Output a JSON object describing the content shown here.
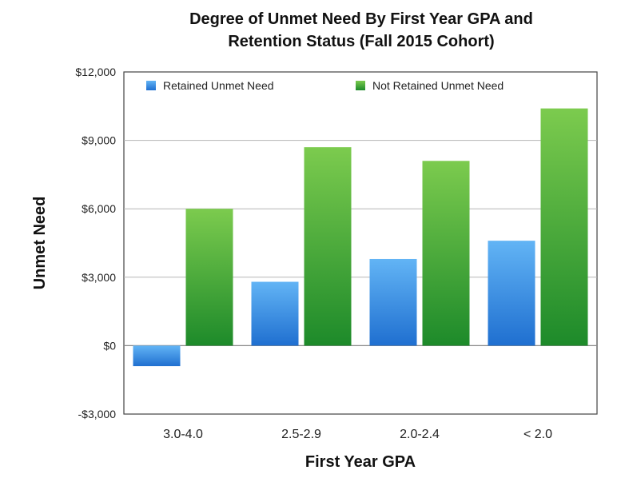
{
  "chart_data": {
    "type": "bar",
    "title_lines": [
      "Degree of Unmet Need By First Year GPA and",
      "Retention Status (Fall 2015 Cohort)"
    ],
    "xlabel": "First Year GPA",
    "ylabel": "Unmet Need",
    "categories": [
      "3.0-4.0",
      "2.5-2.9",
      "2.0-2.4",
      "< 2.0"
    ],
    "series": [
      {
        "name": "Retained Unmet Need",
        "values": [
          -900,
          2800,
          3800,
          4600
        ],
        "color": "#3a8ee6"
      },
      {
        "name": "Not Retained Unmet Need",
        "values": [
          6000,
          8700,
          8100,
          10400
        ],
        "color": "#3aa63a"
      }
    ],
    "ylim": [
      -3000,
      12000
    ],
    "yticks": [
      12000,
      9000,
      6000,
      3000,
      0,
      -3000
    ],
    "ytick_labels": [
      "$12,000",
      "$9,000",
      "$6,000",
      "$3,000",
      "$0",
      "-$3,000"
    ],
    "grid": true,
    "legend_position": "top"
  }
}
